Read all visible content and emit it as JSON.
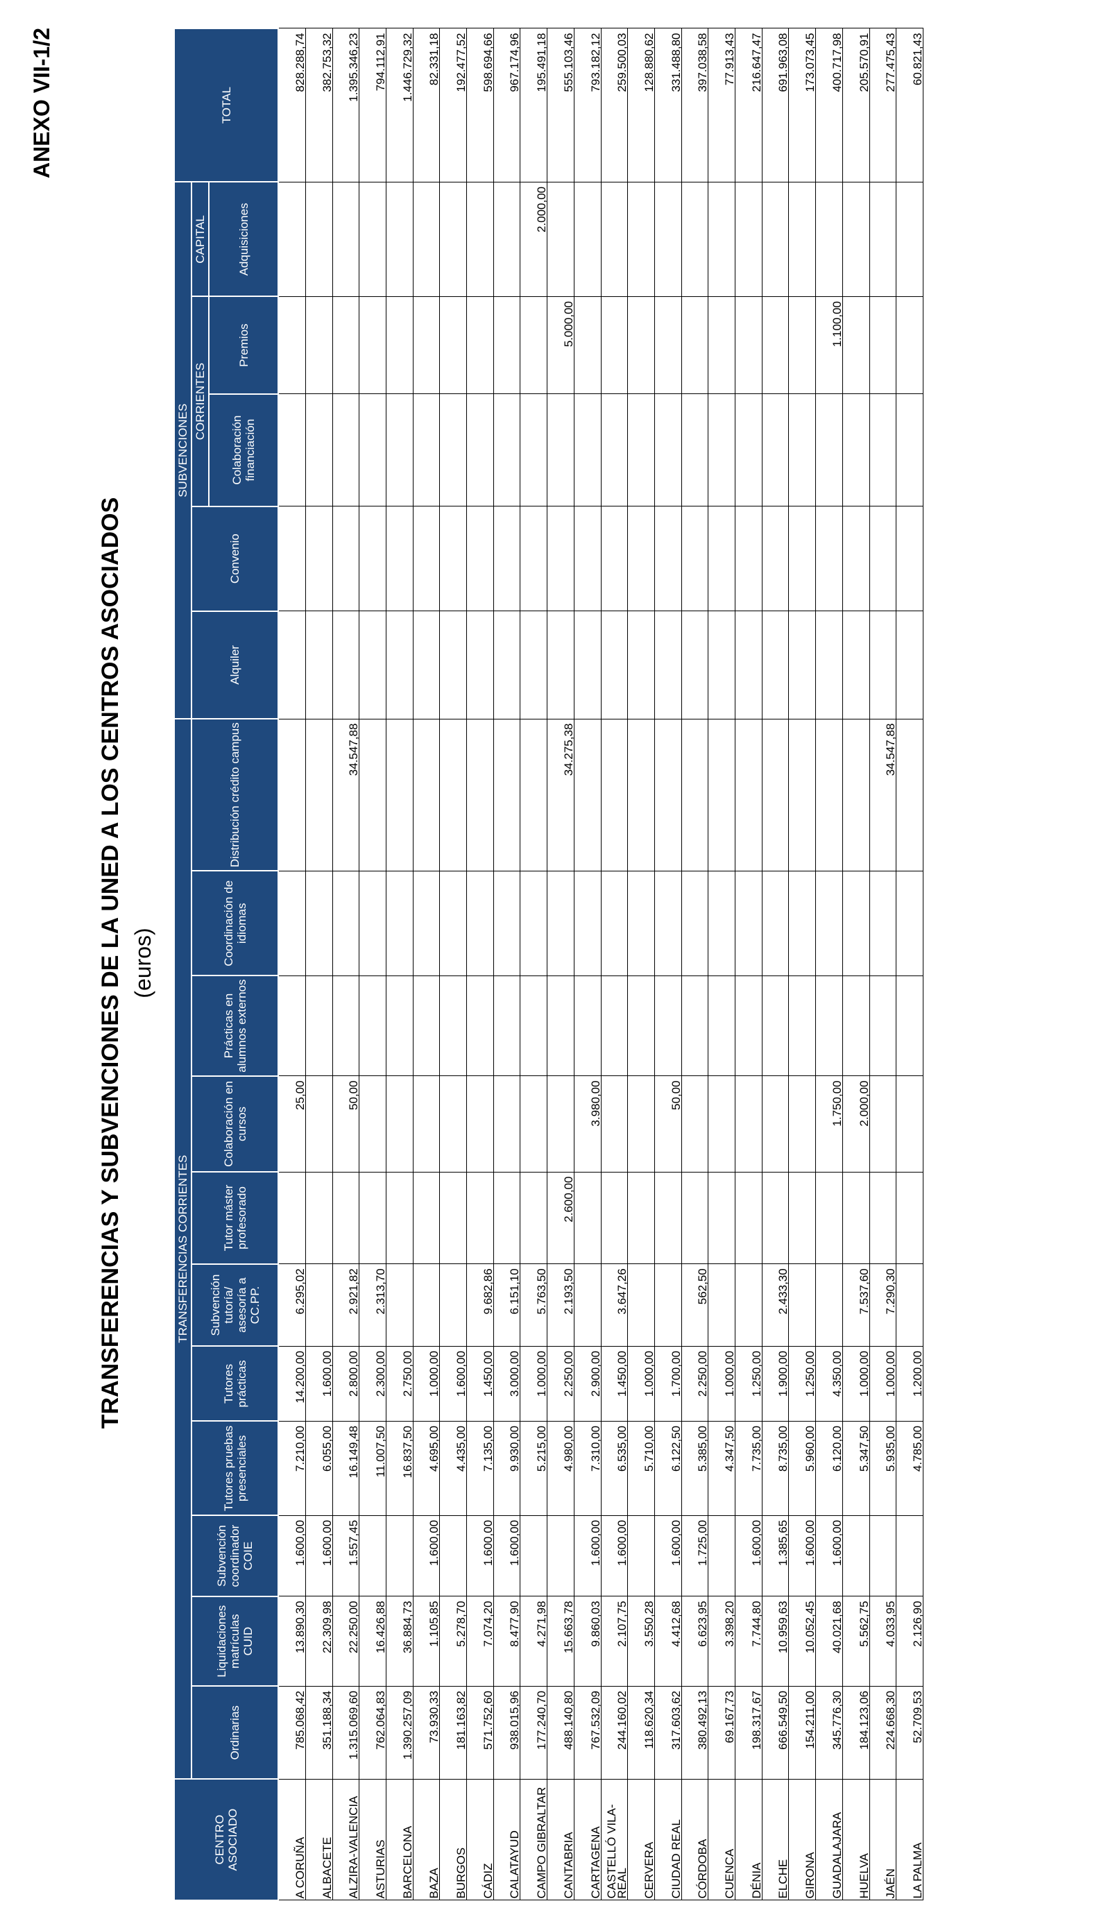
{
  "annex": "ANEXO VII-1/2",
  "title": "TRANSFERENCIAS Y SUBVENCIONES DE LA UNED A LOS CENTROS ASOCIADOS",
  "subtitle": "(euros)",
  "headers": {
    "centro": "CENTRO ASOCIADO",
    "transferencias": "TRANSFERENCIAS CORRIENTES",
    "subvenciones": "SUBVENCIONES",
    "corrientes": "CORRIENTES",
    "capital": "CAPITAL",
    "total": "TOTAL",
    "columns": [
      "Ordinarias",
      "Liquidaciones matrículas CUID",
      "Subvención coordinador COIE",
      "Tutores pruebas presenciales",
      "Tutores prácticas",
      "Subvención tutoría/ asesoría a CC.PP.",
      "Tutor máster profesorado",
      "Colaboración en cursos",
      "Prácticas en alumnos externos",
      "Coordinación de idiomas",
      "Distribución crédito campus",
      "Alquiler",
      "Convenio",
      "Colaboración financiación",
      "Premios",
      "Adquisiciones"
    ]
  },
  "rows": [
    {
      "name": "A CORUÑA",
      "c": [
        "785.068,42",
        "13.890,30",
        "1.600,00",
        "7.210,00",
        "14.200,00",
        "6.295,02",
        "",
        "25,00",
        "",
        "",
        "",
        "",
        "",
        "",
        "",
        ""
      ],
      "total": "828.288,74"
    },
    {
      "name": "ALBACETE",
      "c": [
        "351.188,34",
        "22.309,98",
        "1.600,00",
        "6.055,00",
        "1.600,00",
        "",
        "",
        "",
        "",
        "",
        "",
        "",
        "",
        "",
        "",
        ""
      ],
      "total": "382.753,32"
    },
    {
      "name": "ALZIRA-VALENCIA",
      "c": [
        "1.315.069,60",
        "22.250,00",
        "1.557,45",
        "16.149,48",
        "2.800,00",
        "2.921,82",
        "",
        "50,00",
        "",
        "",
        "34.547,88",
        "",
        "",
        "",
        "",
        ""
      ],
      "total": "1.395.346,23"
    },
    {
      "name": "ASTURIAS",
      "c": [
        "762.064,83",
        "16.426,88",
        "",
        "11.007,50",
        "2.300,00",
        "2.313,70",
        "",
        "",
        "",
        "",
        "",
        "",
        "",
        "",
        "",
        ""
      ],
      "total": "794.112,91"
    },
    {
      "name": "BARCELONA",
      "c": [
        "1.390.257,09",
        "36.884,73",
        "",
        "16.837,50",
        "2.750,00",
        "",
        "",
        "",
        "",
        "",
        "",
        "",
        "",
        "",
        "",
        ""
      ],
      "total": "1.446.729,32"
    },
    {
      "name": "BAZA",
      "c": [
        "73.930,33",
        "1.105,85",
        "1.600,00",
        "4.695,00",
        "1.000,00",
        "",
        "",
        "",
        "",
        "",
        "",
        "",
        "",
        "",
        "",
        ""
      ],
      "total": "82.331,18"
    },
    {
      "name": "BURGOS",
      "c": [
        "181.163,82",
        "5.278,70",
        "",
        "4.435,00",
        "1.600,00",
        "",
        "",
        "",
        "",
        "",
        "",
        "",
        "",
        "",
        "",
        ""
      ],
      "total": "192.477,52"
    },
    {
      "name": "CÁDIZ",
      "c": [
        "571.752,60",
        "7.074,20",
        "1.600,00",
        "7.135,00",
        "1.450,00",
        "9.682,86",
        "",
        "",
        "",
        "",
        "",
        "",
        "",
        "",
        "",
        ""
      ],
      "total": "598.694,66"
    },
    {
      "name": "CALATAYUD",
      "c": [
        "938.015,96",
        "8.477,90",
        "1.600,00",
        "9.930,00",
        "3.000,00",
        "6.151,10",
        "",
        "",
        "",
        "",
        "",
        "",
        "",
        "",
        "",
        ""
      ],
      "total": "967.174,96"
    },
    {
      "name": "CAMPO GIBRALTAR",
      "c": [
        "177.240,70",
        "4.271,98",
        "",
        "5.215,00",
        "1.000,00",
        "5.763,50",
        "",
        "",
        "",
        "",
        "",
        "",
        "",
        "",
        "",
        "2.000,00"
      ],
      "total": "195.491,18"
    },
    {
      "name": "CANTABRIA",
      "c": [
        "488.140,80",
        "15.663,78",
        "",
        "4.980,00",
        "2.250,00",
        "2.193,50",
        "2.600,00",
        "",
        "",
        "",
        "34.275,38",
        "",
        "",
        "",
        "5.000,00",
        ""
      ],
      "total": "555.103,46"
    },
    {
      "name": "CARTAGENA",
      "c": [
        "767.532,09",
        "9.860,03",
        "1.600,00",
        "7.310,00",
        "2.900,00",
        "",
        "",
        "3.980,00",
        "",
        "",
        "",
        "",
        "",
        "",
        "",
        ""
      ],
      "total": "793.182,12"
    },
    {
      "name": "CASTELLÓ VILA-REAL",
      "c": [
        "244.160,02",
        "2.107,75",
        "1.600,00",
        "6.535,00",
        "1.450,00",
        "3.647,26",
        "",
        "",
        "",
        "",
        "",
        "",
        "",
        "",
        "",
        ""
      ],
      "total": "259.500,03"
    },
    {
      "name": "CERVERA",
      "c": [
        "118.620,34",
        "3.550,28",
        "",
        "5.710,00",
        "1.000,00",
        "",
        "",
        "",
        "",
        "",
        "",
        "",
        "",
        "",
        "",
        ""
      ],
      "total": "128.880,62"
    },
    {
      "name": "CIUDAD REAL",
      "c": [
        "317.603,62",
        "4.412,68",
        "1.600,00",
        "6.122,50",
        "1.700,00",
        "",
        "",
        "50,00",
        "",
        "",
        "",
        "",
        "",
        "",
        "",
        ""
      ],
      "total": "331.488,80"
    },
    {
      "name": "CÓRDOBA",
      "c": [
        "380.492,13",
        "6.623,95",
        "1.725,00",
        "5.385,00",
        "2.250,00",
        "562,50",
        "",
        "",
        "",
        "",
        "",
        "",
        "",
        "",
        "",
        ""
      ],
      "total": "397.038,58"
    },
    {
      "name": "CUENCA",
      "c": [
        "69.167,73",
        "3.398,20",
        "",
        "4.347,50",
        "1.000,00",
        "",
        "",
        "",
        "",
        "",
        "",
        "",
        "",
        "",
        "",
        ""
      ],
      "total": "77.913,43"
    },
    {
      "name": "DÉNIA",
      "c": [
        "198.317,67",
        "7.744,80",
        "1.600,00",
        "7.735,00",
        "1.250,00",
        "",
        "",
        "",
        "",
        "",
        "",
        "",
        "",
        "",
        "",
        ""
      ],
      "total": "216.647,47"
    },
    {
      "name": "ELCHE",
      "c": [
        "666.549,50",
        "10.959,63",
        "1.385,65",
        "8.735,00",
        "1.900,00",
        "2.433,30",
        "",
        "",
        "",
        "",
        "",
        "",
        "",
        "",
        "",
        ""
      ],
      "total": "691.963,08"
    },
    {
      "name": "GIRONA",
      "c": [
        "154.211,00",
        "10.052,45",
        "1.600,00",
        "5.960,00",
        "1.250,00",
        "",
        "",
        "",
        "",
        "",
        "",
        "",
        "",
        "",
        "",
        ""
      ],
      "total": "173.073,45"
    },
    {
      "name": "GUADALAJARA",
      "c": [
        "345.776,30",
        "40.021,68",
        "1.600,00",
        "6.120,00",
        "4.350,00",
        "",
        "",
        "1.750,00",
        "",
        "",
        "",
        "",
        "",
        "",
        "1.100,00",
        ""
      ],
      "total": "400.717,98"
    },
    {
      "name": "HUELVA",
      "c": [
        "184.123,06",
        "5.562,75",
        "",
        "5.347,50",
        "1.000,00",
        "7.537,60",
        "",
        "2.000,00",
        "",
        "",
        "",
        "",
        "",
        "",
        "",
        ""
      ],
      "total": "205.570,91"
    },
    {
      "name": "JAÉN",
      "c": [
        "224.668,30",
        "4.033,95",
        "",
        "5.935,00",
        "1.000,00",
        "7.290,30",
        "",
        "",
        "",
        "",
        "34.547,88",
        "",
        "",
        "",
        "",
        ""
      ],
      "total": "277.475,43"
    },
    {
      "name": "LA PALMA",
      "c": [
        "52.709,53",
        "2.126,90",
        "",
        "4.785,00",
        "1.200,00",
        "",
        "",
        "",
        "",
        "",
        "",
        "",
        "",
        "",
        "",
        ""
      ],
      "total": "60.821,43"
    }
  ]
}
